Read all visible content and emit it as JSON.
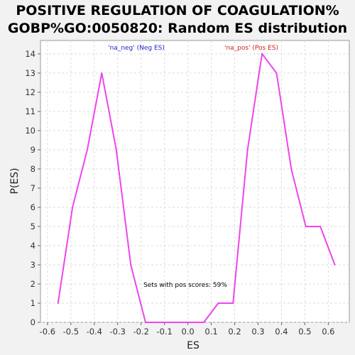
{
  "chart_data": {
    "type": "line",
    "title_line1": "POSITIVE REGULATION OF COAGULATION%",
    "title_line2": "GOBP%GO:0050820: Random ES distribution",
    "xlabel": "ES",
    "ylabel": "P(ES)",
    "xlim": [
      -0.63,
      0.69
    ],
    "ylim": [
      0,
      14.7
    ],
    "xticks": [
      -0.6,
      -0.5,
      -0.4,
      -0.3,
      -0.2,
      -0.1,
      0.0,
      0.1,
      0.2,
      0.3,
      0.4,
      0.5,
      0.6
    ],
    "xtick_labels": [
      "-0.6",
      "-0.5",
      "-0.4",
      "-0.3",
      "-0.2",
      "-0.1",
      "0.0",
      "0.1",
      "0.2",
      "0.3",
      "0.4",
      "0.5",
      "0.6"
    ],
    "yticks": [
      0,
      1,
      2,
      3,
      4,
      5,
      6,
      7,
      8,
      9,
      10,
      11,
      12,
      13,
      14
    ],
    "ytick_labels": [
      "0",
      "1",
      "2",
      "3",
      "4",
      "5",
      "6",
      "7",
      "8",
      "9",
      "10",
      "11",
      "12",
      "13",
      "14"
    ],
    "grid": true,
    "series": [
      {
        "color": "#ee44ee",
        "x": [
          -0.555,
          -0.493,
          -0.43,
          -0.368,
          -0.306,
          -0.244,
          -0.181,
          -0.119,
          -0.057,
          0.006,
          0.068,
          0.13,
          0.193,
          0.255,
          0.317,
          0.379,
          0.442,
          0.504,
          0.566,
          0.628
        ],
        "y": [
          1,
          6,
          9,
          13,
          9,
          3,
          0,
          0,
          0,
          0,
          0,
          1,
          1,
          9,
          14,
          13,
          8,
          5,
          5,
          3
        ]
      }
    ],
    "legend": [
      {
        "label": "'na_neg' (Neg ES)",
        "color": "#2222cc"
      },
      {
        "label": "'na_pos' (Pos ES)",
        "color": "#cc2222"
      }
    ],
    "annotation": "Sets with pos scores: 59%"
  }
}
